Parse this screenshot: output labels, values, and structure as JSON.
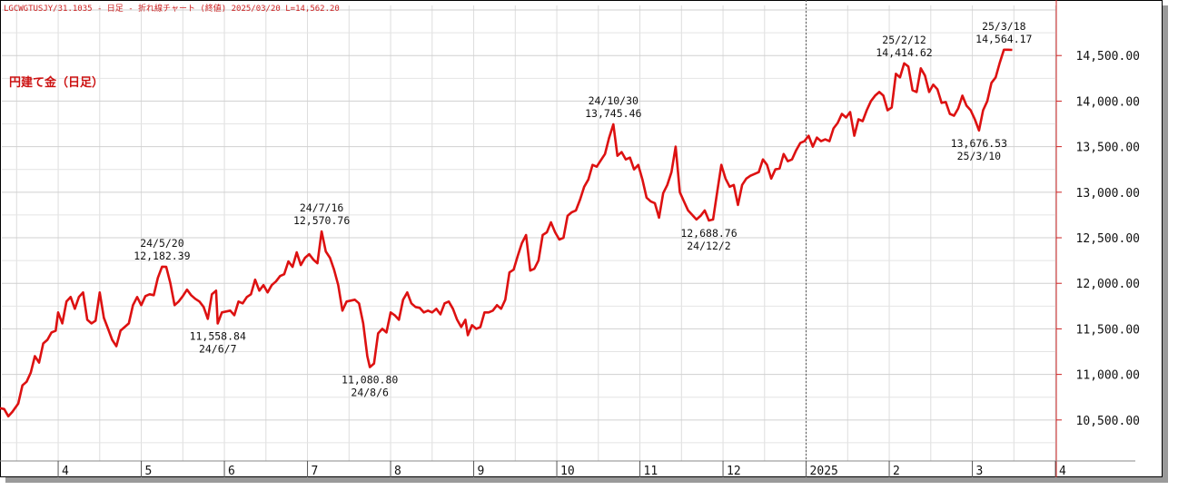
{
  "header": {
    "info": "LGCWGTUSJY/31.1035 - 日足 - 折れ線チャート (終値) 2025/03/20 L=14,562.20"
  },
  "chart_data": {
    "type": "line",
    "series_name": "円建て金（日足）",
    "line_color": "#dd1111",
    "grid": true,
    "ylim": [
      10050,
      15050
    ],
    "y_ticks": [
      10500,
      11000,
      11500,
      12000,
      12500,
      13000,
      13500,
      14000,
      14500
    ],
    "y_tick_labels": [
      "10,500.00",
      "11,000.00",
      "11,500.00",
      "12,000.00",
      "12,500.00",
      "13,000.00",
      "13,500.00",
      "14,000.00",
      "14,500.00"
    ],
    "x_month_labels": [
      {
        "label": "4",
        "t": 0.7
      },
      {
        "label": "5",
        "t": 1.7
      },
      {
        "label": "6",
        "t": 2.7
      },
      {
        "label": "7",
        "t": 3.7
      },
      {
        "label": "8",
        "t": 4.7
      },
      {
        "label": "9",
        "t": 5.7
      },
      {
        "label": "10",
        "t": 6.7
      },
      {
        "label": "11",
        "t": 7.7
      },
      {
        "label": "12",
        "t": 8.7
      },
      {
        "label": "2025",
        "t": 9.7
      },
      {
        "label": "2",
        "t": 10.7
      },
      {
        "label": "3",
        "t": 11.7
      },
      {
        "label": "4",
        "t": 12.7
      }
    ],
    "year_divider_t": 9.7,
    "points": [
      [
        0.0,
        10630
      ],
      [
        0.05,
        10620
      ],
      [
        0.1,
        10540
      ],
      [
        0.15,
        10590
      ],
      [
        0.22,
        10680
      ],
      [
        0.27,
        10880
      ],
      [
        0.32,
        10920
      ],
      [
        0.37,
        11020
      ],
      [
        0.42,
        11200
      ],
      [
        0.47,
        11130
      ],
      [
        0.52,
        11340
      ],
      [
        0.57,
        11380
      ],
      [
        0.62,
        11460
      ],
      [
        0.67,
        11480
      ],
      [
        0.7,
        11680
      ],
      [
        0.75,
        11560
      ],
      [
        0.8,
        11800
      ],
      [
        0.85,
        11850
      ],
      [
        0.9,
        11720
      ],
      [
        0.95,
        11850
      ],
      [
        1.0,
        11900
      ],
      [
        1.05,
        11600
      ],
      [
        1.1,
        11560
      ],
      [
        1.15,
        11590
      ],
      [
        1.2,
        11900
      ],
      [
        1.25,
        11620
      ],
      [
        1.3,
        11500
      ],
      [
        1.35,
        11380
      ],
      [
        1.4,
        11310
      ],
      [
        1.45,
        11480
      ],
      [
        1.5,
        11520
      ],
      [
        1.55,
        11560
      ],
      [
        1.6,
        11760
      ],
      [
        1.65,
        11850
      ],
      [
        1.7,
        11760
      ],
      [
        1.75,
        11860
      ],
      [
        1.8,
        11880
      ],
      [
        1.85,
        11870
      ],
      [
        1.9,
        12060
      ],
      [
        1.95,
        12182
      ],
      [
        2.0,
        12180
      ],
      [
        2.05,
        12000
      ],
      [
        2.1,
        11760
      ],
      [
        2.15,
        11800
      ],
      [
        2.2,
        11860
      ],
      [
        2.25,
        11930
      ],
      [
        2.3,
        11870
      ],
      [
        2.35,
        11830
      ],
      [
        2.4,
        11800
      ],
      [
        2.45,
        11740
      ],
      [
        2.5,
        11610
      ],
      [
        2.55,
        11880
      ],
      [
        2.6,
        11920
      ],
      [
        2.62,
        11559
      ],
      [
        2.67,
        11680
      ],
      [
        2.72,
        11690
      ],
      [
        2.77,
        11700
      ],
      [
        2.82,
        11650
      ],
      [
        2.87,
        11800
      ],
      [
        2.92,
        11780
      ],
      [
        2.97,
        11850
      ],
      [
        3.02,
        11880
      ],
      [
        3.07,
        12040
      ],
      [
        3.12,
        11920
      ],
      [
        3.17,
        11980
      ],
      [
        3.22,
        11900
      ],
      [
        3.27,
        11980
      ],
      [
        3.32,
        12020
      ],
      [
        3.37,
        12080
      ],
      [
        3.42,
        12100
      ],
      [
        3.47,
        12240
      ],
      [
        3.52,
        12180
      ],
      [
        3.57,
        12340
      ],
      [
        3.62,
        12200
      ],
      [
        3.67,
        12280
      ],
      [
        3.72,
        12320
      ],
      [
        3.77,
        12260
      ],
      [
        3.82,
        12220
      ],
      [
        3.87,
        12570
      ],
      [
        3.92,
        12350
      ],
      [
        3.97,
        12280
      ],
      [
        4.02,
        12150
      ],
      [
        4.07,
        11980
      ],
      [
        4.12,
        11700
      ],
      [
        4.17,
        11800
      ],
      [
        4.22,
        11810
      ],
      [
        4.27,
        11820
      ],
      [
        4.32,
        11780
      ],
      [
        4.37,
        11560
      ],
      [
        4.42,
        11200
      ],
      [
        4.45,
        11080
      ],
      [
        4.5,
        11120
      ],
      [
        4.55,
        11450
      ],
      [
        4.6,
        11500
      ],
      [
        4.65,
        11460
      ],
      [
        4.7,
        11680
      ],
      [
        4.75,
        11650
      ],
      [
        4.8,
        11600
      ],
      [
        4.85,
        11820
      ],
      [
        4.9,
        11900
      ],
      [
        4.95,
        11780
      ],
      [
        5.0,
        11740
      ],
      [
        5.05,
        11730
      ],
      [
        5.1,
        11680
      ],
      [
        5.15,
        11700
      ],
      [
        5.2,
        11680
      ],
      [
        5.25,
        11720
      ],
      [
        5.3,
        11660
      ],
      [
        5.35,
        11780
      ],
      [
        5.4,
        11800
      ],
      [
        5.45,
        11720
      ],
      [
        5.5,
        11600
      ],
      [
        5.55,
        11520
      ],
      [
        5.6,
        11600
      ],
      [
        5.63,
        11430
      ],
      [
        5.68,
        11540
      ],
      [
        5.73,
        11500
      ],
      [
        5.78,
        11520
      ],
      [
        5.83,
        11680
      ],
      [
        5.88,
        11680
      ],
      [
        5.93,
        11700
      ],
      [
        5.98,
        11760
      ],
      [
        6.03,
        11720
      ],
      [
        6.08,
        11820
      ],
      [
        6.13,
        12120
      ],
      [
        6.18,
        12150
      ],
      [
        6.23,
        12300
      ],
      [
        6.28,
        12440
      ],
      [
        6.33,
        12530
      ],
      [
        6.38,
        12140
      ],
      [
        6.43,
        12160
      ],
      [
        6.48,
        12250
      ],
      [
        6.53,
        12530
      ],
      [
        6.58,
        12560
      ],
      [
        6.63,
        12670
      ],
      [
        6.68,
        12560
      ],
      [
        6.73,
        12480
      ],
      [
        6.78,
        12500
      ],
      [
        6.83,
        12740
      ],
      [
        6.88,
        12780
      ],
      [
        6.93,
        12800
      ],
      [
        6.98,
        12920
      ],
      [
        7.03,
        13060
      ],
      [
        7.08,
        13140
      ],
      [
        7.13,
        13300
      ],
      [
        7.18,
        13280
      ],
      [
        7.23,
        13350
      ],
      [
        7.28,
        13420
      ],
      [
        7.33,
        13600
      ],
      [
        7.38,
        13745
      ],
      [
        7.43,
        13400
      ],
      [
        7.48,
        13440
      ],
      [
        7.53,
        13360
      ],
      [
        7.58,
        13380
      ],
      [
        7.63,
        13250
      ],
      [
        7.68,
        13300
      ],
      [
        7.73,
        13140
      ],
      [
        7.78,
        12940
      ],
      [
        7.83,
        12900
      ],
      [
        7.88,
        12880
      ],
      [
        7.93,
        12720
      ],
      [
        7.98,
        12990
      ],
      [
        8.03,
        13080
      ],
      [
        8.08,
        13220
      ],
      [
        8.13,
        13500
      ],
      [
        8.18,
        13000
      ],
      [
        8.23,
        12900
      ],
      [
        8.28,
        12800
      ],
      [
        8.33,
        12750
      ],
      [
        8.38,
        12700
      ],
      [
        8.43,
        12740
      ],
      [
        8.48,
        12800
      ],
      [
        8.53,
        12689
      ],
      [
        8.58,
        12700
      ],
      [
        8.63,
        13000
      ],
      [
        8.68,
        13300
      ],
      [
        8.73,
        13150
      ],
      [
        8.78,
        13060
      ],
      [
        8.83,
        13080
      ],
      [
        8.88,
        12860
      ],
      [
        8.93,
        13080
      ],
      [
        8.98,
        13150
      ],
      [
        9.03,
        13180
      ],
      [
        9.08,
        13200
      ],
      [
        9.13,
        13220
      ],
      [
        9.18,
        13360
      ],
      [
        9.23,
        13300
      ],
      [
        9.28,
        13150
      ],
      [
        9.33,
        13250
      ],
      [
        9.38,
        13260
      ],
      [
        9.43,
        13420
      ],
      [
        9.48,
        13340
      ],
      [
        9.53,
        13360
      ],
      [
        9.58,
        13460
      ],
      [
        9.63,
        13540
      ],
      [
        9.68,
        13560
      ],
      [
        9.73,
        13620
      ],
      [
        9.78,
        13500
      ],
      [
        9.83,
        13600
      ],
      [
        9.88,
        13560
      ],
      [
        9.93,
        13580
      ],
      [
        9.98,
        13560
      ],
      [
        10.03,
        13700
      ],
      [
        10.08,
        13760
      ],
      [
        10.13,
        13860
      ],
      [
        10.18,
        13820
      ],
      [
        10.23,
        13880
      ],
      [
        10.28,
        13620
      ],
      [
        10.33,
        13800
      ],
      [
        10.38,
        13780
      ],
      [
        10.43,
        13900
      ],
      [
        10.48,
        14000
      ],
      [
        10.53,
        14060
      ],
      [
        10.58,
        14100
      ],
      [
        10.63,
        14060
      ],
      [
        10.68,
        13900
      ],
      [
        10.73,
        13930
      ],
      [
        10.78,
        14300
      ],
      [
        10.83,
        14260
      ],
      [
        10.88,
        14415
      ],
      [
        10.93,
        14380
      ],
      [
        10.98,
        14120
      ],
      [
        11.03,
        14100
      ],
      [
        11.08,
        14360
      ],
      [
        11.13,
        14280
      ],
      [
        11.18,
        14100
      ],
      [
        11.23,
        14180
      ],
      [
        11.28,
        14130
      ],
      [
        11.33,
        13980
      ],
      [
        11.38,
        13990
      ],
      [
        11.43,
        13860
      ],
      [
        11.48,
        13840
      ],
      [
        11.53,
        13920
      ],
      [
        11.58,
        14060
      ],
      [
        11.63,
        13950
      ],
      [
        11.68,
        13900
      ],
      [
        11.73,
        13800
      ],
      [
        11.78,
        13677
      ],
      [
        11.83,
        13900
      ],
      [
        11.88,
        14000
      ],
      [
        11.93,
        14200
      ],
      [
        11.98,
        14260
      ],
      [
        12.03,
        14420
      ],
      [
        12.08,
        14564
      ],
      [
        12.13,
        14564
      ],
      [
        12.18,
        14562
      ]
    ],
    "annotations": [
      {
        "date": "24/5/20",
        "value": "12,182.39",
        "t": 1.95,
        "pos": "above"
      },
      {
        "date": "24/6/7",
        "value": "11,558.84",
        "t": 2.62,
        "pos": "below"
      },
      {
        "date": "24/7/16",
        "value": "12,570.76",
        "t": 3.87,
        "pos": "above"
      },
      {
        "date": "24/8/6",
        "value": "11,080.80",
        "t": 4.45,
        "pos": "below"
      },
      {
        "date": "24/10/30",
        "value": "13,745.46",
        "t": 7.38,
        "pos": "above"
      },
      {
        "date": "24/12/2",
        "value": "12,688.76",
        "t": 8.53,
        "pos": "below"
      },
      {
        "date": "25/2/12",
        "value": "14,414.62",
        "t": 10.88,
        "pos": "above"
      },
      {
        "date": "25/3/10",
        "value": "13,676.53",
        "t": 11.78,
        "pos": "below"
      },
      {
        "date": "25/3/18",
        "value": "14,564.17",
        "t": 12.08,
        "pos": "above"
      }
    ]
  }
}
